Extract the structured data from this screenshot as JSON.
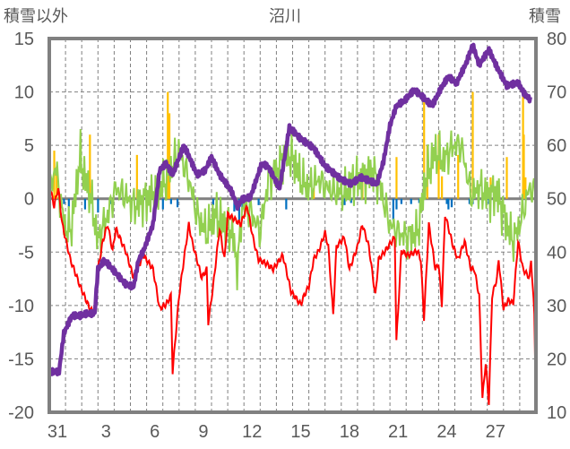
{
  "chart_data": {
    "type": "line",
    "title": "沼川",
    "ylabel_left": "積雪以外",
    "ylabel_right": "積雪",
    "ylim_left": [
      -20,
      15
    ],
    "ylim_right": [
      10,
      80
    ],
    "yticks_left": [
      "15",
      "10",
      "5",
      "0",
      "-5",
      "-10",
      "-15",
      "-20"
    ],
    "yticks_right": [
      "80",
      "70",
      "60",
      "50",
      "40",
      "30",
      "20",
      "10"
    ],
    "x_unit": "days from Dec 30 00:00",
    "xlim": [
      0,
      30
    ],
    "xtick_labels": [
      {
        "t": 1,
        "label": "31"
      },
      {
        "t": 4,
        "label": "3"
      },
      {
        "t": 7,
        "label": "6"
      },
      {
        "t": 10,
        "label": "9"
      },
      {
        "t": 13,
        "label": "12"
      },
      {
        "t": 16,
        "label": "15"
      },
      {
        "t": 19,
        "label": "18"
      },
      {
        "t": 22,
        "label": "21"
      },
      {
        "t": 25,
        "label": "24"
      },
      {
        "t": 28,
        "label": "27"
      }
    ],
    "grid": true,
    "colors": {
      "snow": "#7030A0",
      "red": "#FF0000",
      "green": "#92D050",
      "orange": "#FFC000",
      "blue": "#0070C0",
      "frame": "#808080"
    },
    "series": [
      {
        "name": "積雪",
        "axis": "right",
        "color": "#7030A0",
        "points": [
          [
            0,
            17.6
          ],
          [
            0.6,
            17.6
          ],
          [
            0.9,
            24.8
          ],
          [
            1.4,
            28.1
          ],
          [
            1.9,
            28.1
          ],
          [
            2.3,
            28.5
          ],
          [
            2.8,
            28.5
          ],
          [
            3.0,
            36.8
          ],
          [
            3.4,
            38.5
          ],
          [
            3.9,
            36.8
          ],
          [
            4.7,
            34.0
          ],
          [
            5.2,
            33.5
          ],
          [
            5.5,
            38.5
          ],
          [
            5.8,
            40.2
          ],
          [
            6.4,
            45.2
          ],
          [
            6.8,
            55.3
          ],
          [
            7.2,
            56.6
          ],
          [
            7.6,
            54.5
          ],
          [
            7.8,
            56.1
          ],
          [
            8.3,
            60.0
          ],
          [
            8.7,
            57.3
          ],
          [
            9.1,
            54.5
          ],
          [
            9.6,
            55.3
          ],
          [
            10.0,
            57.8
          ],
          [
            10.5,
            54.5
          ],
          [
            11.2,
            51.6
          ],
          [
            11.6,
            48.6
          ],
          [
            11.9,
            49.9
          ],
          [
            12.4,
            50.3
          ],
          [
            13.1,
            56.6
          ],
          [
            13.5,
            56.0
          ],
          [
            14.2,
            51.9
          ],
          [
            14.8,
            63.4
          ],
          [
            15.5,
            61.2
          ],
          [
            16.3,
            59.5
          ],
          [
            17.0,
            56.1
          ],
          [
            18.0,
            53.6
          ],
          [
            18.6,
            52.8
          ],
          [
            19.2,
            54.0
          ],
          [
            20.2,
            52.8
          ],
          [
            20.6,
            57.0
          ],
          [
            21.0,
            63.7
          ],
          [
            21.4,
            67.4
          ],
          [
            21.9,
            68.4
          ],
          [
            22.5,
            70.4
          ],
          [
            23.0,
            69.1
          ],
          [
            23.6,
            67.4
          ],
          [
            24.1,
            70.4
          ],
          [
            24.6,
            72.9
          ],
          [
            25.1,
            71.6
          ],
          [
            25.7,
            75.4
          ],
          [
            26.1,
            78.8
          ],
          [
            26.5,
            75.1
          ],
          [
            27.1,
            77.9
          ],
          [
            27.6,
            74.6
          ],
          [
            28.2,
            71.2
          ],
          [
            28.9,
            71.7
          ],
          [
            29.3,
            69.6
          ],
          [
            29.7,
            68.4
          ]
        ]
      },
      {
        "name": "red",
        "axis": "left",
        "color": "#FF0000",
        "points": [
          [
            0,
            1.4
          ],
          [
            0.3,
            -0.7
          ],
          [
            0.55,
            1.0
          ],
          [
            0.8,
            -2.4
          ],
          [
            1.3,
            -5.7
          ],
          [
            1.9,
            -8.2
          ],
          [
            2.5,
            -10.3
          ],
          [
            2.8,
            -10.8
          ],
          [
            3.0,
            -6.6
          ],
          [
            3.3,
            -4
          ],
          [
            3.6,
            -2.4
          ],
          [
            3.9,
            -4.9
          ],
          [
            4.1,
            -2.8
          ],
          [
            4.7,
            -4.9
          ],
          [
            5.2,
            -7.4
          ],
          [
            5.8,
            -5.3
          ],
          [
            6.4,
            -6.6
          ],
          [
            6.8,
            -10.3
          ],
          [
            7.2,
            -9.9
          ],
          [
            7.5,
            -9.1
          ],
          [
            7.6,
            -16.2
          ],
          [
            8.0,
            -9.1
          ],
          [
            8.3,
            -5.7
          ],
          [
            8.6,
            -2.4
          ],
          [
            8.8,
            -4
          ],
          [
            9.1,
            -5.7
          ],
          [
            9.4,
            -7.4
          ],
          [
            9.7,
            -6.6
          ],
          [
            9.8,
            -11.6
          ],
          [
            10.1,
            -8.2
          ],
          [
            10.5,
            -2.8
          ],
          [
            10.8,
            -5.7
          ],
          [
            11.0,
            -1.5
          ],
          [
            11.4,
            -1.9
          ],
          [
            11.8,
            -2.4
          ],
          [
            12.2,
            -0.7
          ],
          [
            12.6,
            -4
          ],
          [
            12.9,
            -5.7
          ],
          [
            13.4,
            -6.1
          ],
          [
            13.8,
            -6.6
          ],
          [
            14.4,
            -5.3
          ],
          [
            14.9,
            -8.7
          ],
          [
            15.5,
            -9.9
          ],
          [
            15.7,
            -9.1
          ],
          [
            16.0,
            -8.2
          ],
          [
            16.3,
            -5.7
          ],
          [
            16.6,
            -4.9
          ],
          [
            17.0,
            -3.2
          ],
          [
            17.2,
            -4.5
          ],
          [
            17.5,
            -10.8
          ],
          [
            17.7,
            -4.5
          ],
          [
            18.2,
            -3.6
          ],
          [
            18.5,
            -6.6
          ],
          [
            19.0,
            -4.5
          ],
          [
            19.3,
            -2.4
          ],
          [
            19.7,
            -4.5
          ],
          [
            20.1,
            -9.1
          ],
          [
            20.3,
            -5.7
          ],
          [
            20.7,
            -4.9
          ],
          [
            21.3,
            -3.6
          ],
          [
            21.4,
            -13.4
          ],
          [
            21.7,
            -4.9
          ],
          [
            22.1,
            -5.3
          ],
          [
            22.7,
            -4.9
          ],
          [
            22.9,
            -5.7
          ],
          [
            23.1,
            -11.2
          ],
          [
            23.4,
            -2.4
          ],
          [
            23.8,
            -6.6
          ],
          [
            24.0,
            -6.1
          ],
          [
            24.2,
            -9.9
          ],
          [
            24.4,
            -1.5
          ],
          [
            24.9,
            -4.5
          ],
          [
            25.2,
            -5.7
          ],
          [
            25.6,
            -4
          ],
          [
            26.0,
            -6.6
          ],
          [
            26.2,
            -6.6
          ],
          [
            26.5,
            -9.1
          ],
          [
            26.7,
            -18.7
          ],
          [
            26.9,
            -15.4
          ],
          [
            27.1,
            -19.1
          ],
          [
            27.3,
            -9.1
          ],
          [
            27.6,
            -7.4
          ],
          [
            27.7,
            -5.7
          ],
          [
            28.0,
            -10.3
          ],
          [
            28.3,
            -9.5
          ],
          [
            28.6,
            -9.8
          ],
          [
            28.9,
            -4
          ],
          [
            29.2,
            -6.6
          ],
          [
            29.6,
            -7.4
          ],
          [
            29.7,
            -5.7
          ],
          [
            29.9,
            -10.8
          ],
          [
            30.0,
            -19.6
          ]
        ]
      },
      {
        "name": "green",
        "axis": "left",
        "color": "#92D050",
        "points": [
          [
            0,
            0.6
          ],
          [
            0.4,
            3.1
          ],
          [
            0.8,
            -1.5
          ],
          [
            1.1,
            -3.2
          ],
          [
            1.4,
            -2.4
          ],
          [
            1.9,
            4
          ],
          [
            2.2,
            1.8
          ],
          [
            2.5,
            0.6
          ],
          [
            3.0,
            -4
          ],
          [
            3.6,
            -1.5
          ],
          [
            4.1,
            1
          ],
          [
            4.7,
            0.2
          ],
          [
            5.2,
            -0.7
          ],
          [
            5.8,
            -0.2
          ],
          [
            6.6,
            0.6
          ],
          [
            7.2,
            1.8
          ],
          [
            7.7,
            3.5
          ],
          [
            8.0,
            4.4
          ],
          [
            8.6,
            1.8
          ],
          [
            9.1,
            -1.5
          ],
          [
            9.7,
            -3.2
          ],
          [
            10.2,
            -1.5
          ],
          [
            10.8,
            -2.4
          ],
          [
            11.3,
            -3.2
          ],
          [
            11.6,
            -6.6
          ],
          [
            11.9,
            -0.7
          ],
          [
            12.4,
            -1.1
          ],
          [
            13.0,
            -3.2
          ],
          [
            13.5,
            1.8
          ],
          [
            14.1,
            2.7
          ],
          [
            14.6,
            4.4
          ],
          [
            15.1,
            3.5
          ],
          [
            15.5,
            1.8
          ],
          [
            16.0,
            1
          ],
          [
            16.6,
            1.8
          ],
          [
            17.1,
            1
          ],
          [
            17.7,
            0.6
          ],
          [
            18.2,
            0.6
          ],
          [
            18.8,
            1.8
          ],
          [
            19.3,
            1.8
          ],
          [
            19.9,
            2.7
          ],
          [
            20.4,
            1
          ],
          [
            21.0,
            -2.4
          ],
          [
            21.5,
            -3.2
          ],
          [
            22.1,
            -3.6
          ],
          [
            22.7,
            -3.2
          ],
          [
            23.2,
            1.8
          ],
          [
            23.8,
            4.4
          ],
          [
            24.3,
            3.5
          ],
          [
            24.9,
            5
          ],
          [
            25.4,
            5
          ],
          [
            25.7,
            2.7
          ],
          [
            26.0,
            0.2
          ],
          [
            26.5,
            1
          ],
          [
            27.1,
            0.2
          ],
          [
            27.6,
            0.6
          ],
          [
            28.2,
            -2.4
          ],
          [
            28.6,
            -4
          ],
          [
            29.0,
            -2.4
          ],
          [
            29.6,
            1
          ],
          [
            29.9,
            0.6
          ]
        ]
      },
      {
        "name": "orange",
        "type": "bar",
        "axis": "left",
        "color": "#FFC000",
        "points": [
          [
            0.3,
            4.5
          ],
          [
            0.45,
            3
          ],
          [
            2.5,
            6
          ],
          [
            5.4,
            4.1
          ],
          [
            7.3,
            10
          ],
          [
            7.4,
            8
          ],
          [
            16.3,
            1
          ],
          [
            19.3,
            2.9
          ],
          [
            21.4,
            3.9
          ],
          [
            23.1,
            9.4
          ],
          [
            23.3,
            5
          ],
          [
            24.0,
            6
          ],
          [
            24.2,
            2.1
          ],
          [
            25.2,
            4.1
          ],
          [
            26.1,
            10
          ],
          [
            27.2,
            2
          ],
          [
            28.2,
            3.9
          ],
          [
            29.2,
            9.8
          ],
          [
            29.25,
            6
          ],
          [
            29.35,
            2
          ]
        ]
      },
      {
        "name": "blue",
        "type": "bar",
        "axis": "left",
        "color": "#0070C0",
        "points": [
          [
            0.9,
            -0.5
          ],
          [
            1.2,
            -0.8
          ],
          [
            2.2,
            -1
          ],
          [
            3.0,
            -1.3
          ],
          [
            3.8,
            -0.5
          ],
          [
            6.7,
            -0.6
          ],
          [
            7.0,
            -1
          ],
          [
            7.5,
            -0.5
          ],
          [
            7.9,
            -0.8
          ],
          [
            10.1,
            -0.6
          ],
          [
            11.4,
            -1.2
          ],
          [
            11.7,
            -2
          ],
          [
            11.9,
            -1
          ],
          [
            12.9,
            -0.6
          ],
          [
            14.6,
            -1
          ],
          [
            18.2,
            -0.6
          ],
          [
            18.6,
            -0.4
          ],
          [
            21.2,
            -2
          ],
          [
            21.4,
            -1
          ],
          [
            21.7,
            -0.5
          ],
          [
            22.3,
            -0.5
          ],
          [
            22.8,
            -0.4
          ],
          [
            24.5,
            -0.5
          ],
          [
            24.6,
            -1
          ],
          [
            24.8,
            -0.8
          ],
          [
            25.9,
            -0.5
          ],
          [
            26.1,
            -0.5
          ],
          [
            27.1,
            -0.5
          ]
        ]
      }
    ]
  }
}
